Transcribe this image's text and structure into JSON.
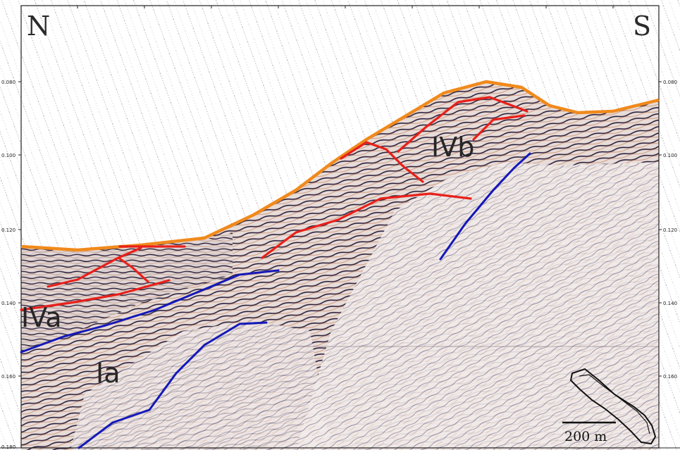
{
  "section": {
    "direction_left": "N",
    "direction_right": "S",
    "y_ticks": [
      "0.080",
      "0.100",
      "0.120",
      "0.140",
      "0.160",
      "0.180"
    ]
  },
  "units": [
    {
      "id": "IVb",
      "label": "IVb"
    },
    {
      "id": "IVa",
      "label": "IVa"
    },
    {
      "id": "Ia",
      "label": "Ia"
    }
  ],
  "scale_bar": {
    "label": "200 m"
  },
  "colors": {
    "seafloor": "#f08a1c",
    "reflector_red": "#e8201a",
    "reflector_blue": "#1418b8",
    "amplitude_dark": "#2b1f3a",
    "amplitude_warm": "#c98b6a",
    "background": "#ffffff"
  }
}
